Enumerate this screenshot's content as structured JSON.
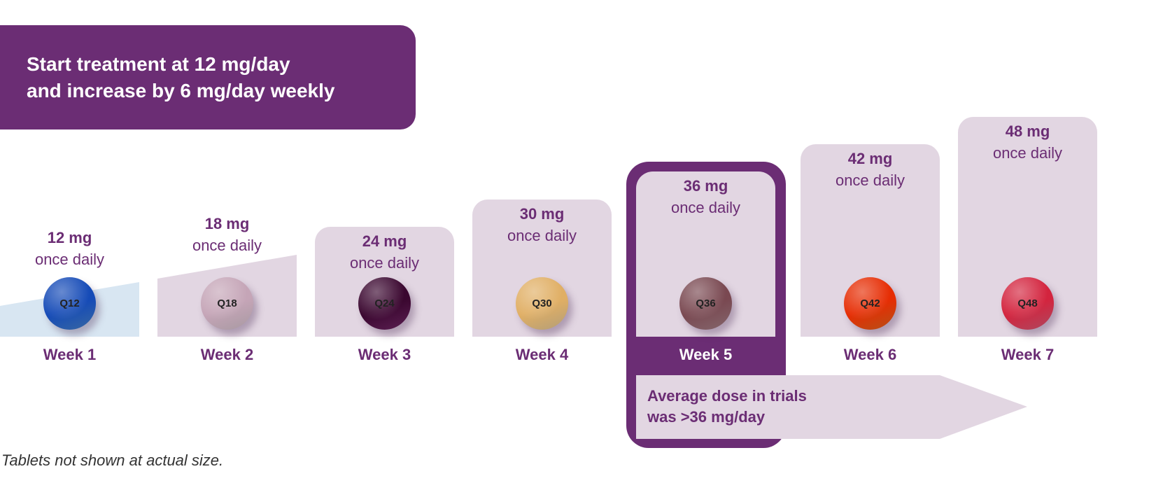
{
  "banner": {
    "line1": "Start treatment at 12 mg/day",
    "line2": "and increase by 6 mg/day weekly"
  },
  "weeks": [
    {
      "dose": "12 mg",
      "freq": "once daily",
      "tablet": "Q12",
      "label": "Week 1",
      "color": "#4a8ad8"
    },
    {
      "dose": "18 mg",
      "freq": "once daily",
      "tablet": "Q18",
      "label": "Week 2",
      "color": "#e0cdd8"
    },
    {
      "dose": "24 mg",
      "freq": "once daily",
      "tablet": "Q24",
      "label": "Week 3",
      "color": "#7a2a6e"
    },
    {
      "dose": "30 mg",
      "freq": "once daily",
      "tablet": "Q30",
      "label": "Week 4",
      "color": "#efd3a0"
    },
    {
      "dose": "36 mg",
      "freq": "once daily",
      "tablet": "Q36",
      "label": "Week 5",
      "color": "#b08890"
    },
    {
      "dose": "42 mg",
      "freq": "once daily",
      "tablet": "Q42",
      "label": "Week 6",
      "color": "#f26b1e"
    },
    {
      "dose": "48 mg",
      "freq": "once daily",
      "tablet": "Q48",
      "label": "Week 7",
      "color": "#e8607e"
    }
  ],
  "average": {
    "line1": "Average dose in trials",
    "line2": "was >36 mg/day"
  },
  "footnote": "Tablets not shown at actual size.",
  "colors": {
    "purple": "#6b2d74",
    "lilac": "#e2d6e2",
    "lightblue": "#d8e6f2"
  }
}
